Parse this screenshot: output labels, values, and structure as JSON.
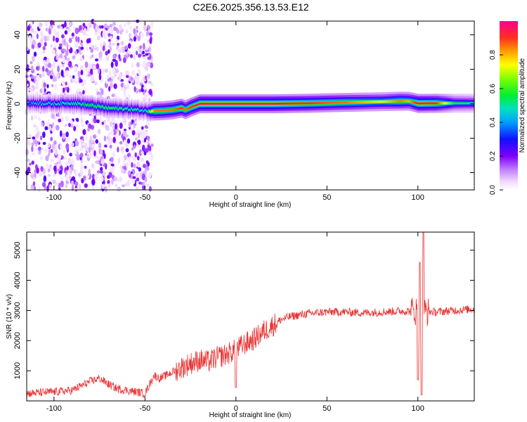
{
  "chart_data": [
    {
      "type": "heatmap",
      "title": "C2E6.2025.356.13.53.E12",
      "xlabel": "Height of straight line (km)",
      "ylabel": "Frequency (Hz)",
      "xlim": [
        -115,
        131
      ],
      "ylim": [
        -50,
        48
      ],
      "xticks": [
        -100,
        -50,
        0,
        50,
        100
      ],
      "xtick_labels": [
        "-100",
        "-50",
        "0",
        "50",
        "100"
      ],
      "yticks": [
        -40,
        -20,
        0,
        20,
        40
      ],
      "ytick_labels": [
        "-40",
        "-20",
        "0",
        "20",
        "40"
      ],
      "colorbar": {
        "label": "Normalized spectral amplitude",
        "range": [
          0,
          1
        ],
        "ticks": [
          0.0,
          0.2,
          0.4,
          0.6,
          0.8
        ],
        "tick_labels": [
          "0.0",
          "0.2",
          "0.4",
          "0.6",
          "0.8"
        ]
      },
      "centerline": {
        "x": [
          -115,
          -100,
          -90,
          -80,
          -70,
          -60,
          -55,
          -50,
          -45,
          -40,
          -35,
          -30,
          -28,
          -25,
          -20,
          -10,
          0,
          20,
          40,
          60,
          80,
          90,
          95,
          100,
          110,
          120,
          131
        ],
        "freq": [
          0.5,
          0,
          0.5,
          -1,
          -2.5,
          -3,
          -3.5,
          -4,
          -4.2,
          -4,
          -3.5,
          -2.5,
          -3.5,
          -2,
          0,
          0,
          0,
          0,
          0.3,
          0.8,
          1.2,
          1.5,
          1.5,
          0.2,
          0.3,
          0.3,
          0.3
        ],
        "peak_amplitude": [
          0.4,
          0.45,
          0.5,
          0.55,
          0.55,
          0.5,
          0.5,
          0.45,
          0.85,
          0.85,
          0.85,
          0.9,
          0.85,
          0.9,
          0.95,
          0.95,
          0.95,
          0.95,
          0.9,
          0.85,
          0.75,
          0.85,
          0.8,
          0.95,
          0.9,
          0.55,
          0.5
        ]
      },
      "noise_region_x": [
        -115,
        -46
      ]
    },
    {
      "type": "line",
      "xlabel": "Height of straight line (km)",
      "ylabel": "SNR (10 * v/v)",
      "xlim": [
        -115,
        131
      ],
      "ylim": [
        0,
        5600
      ],
      "xticks": [
        -100,
        -50,
        0,
        50,
        100
      ],
      "xtick_labels": [
        "-100",
        "-50",
        "0",
        "50",
        "100"
      ],
      "yticks": [
        1000,
        2000,
        3000,
        4000,
        5000
      ],
      "ytick_labels": [
        "1000",
        "2000",
        "3000",
        "4000",
        "5000"
      ],
      "series": [
        {
          "name": "SNR",
          "color": "#e83232",
          "x": [
            -115,
            -100,
            -90,
            -85,
            -80,
            -75,
            -70,
            -65,
            -60,
            -55,
            -50,
            -47,
            -45,
            -42,
            -40,
            -35,
            -30,
            -25,
            -20,
            -15,
            -10,
            -5,
            0,
            5,
            10,
            15,
            20,
            25,
            30,
            35,
            40,
            50,
            60,
            70,
            80,
            90,
            100,
            110,
            120,
            131
          ],
          "values": [
            250,
            300,
            350,
            500,
            650,
            750,
            550,
            400,
            350,
            300,
            250,
            600,
            850,
            750,
            800,
            950,
            1100,
            1250,
            1350,
            1300,
            1450,
            1550,
            1700,
            1900,
            2050,
            2300,
            2500,
            2700,
            2800,
            2850,
            2900,
            2950,
            2950,
            2920,
            2950,
            2980,
            2980,
            2950,
            3000,
            3050
          ],
          "spikes": [
            {
              "x": 0,
              "min": 450
            },
            {
              "x": 100,
              "min": 700
            },
            {
              "x": 101,
              "max": 4600
            },
            {
              "x": 102,
              "min": 200
            },
            {
              "x": 103,
              "max": 5700
            }
          ]
        }
      ]
    }
  ]
}
